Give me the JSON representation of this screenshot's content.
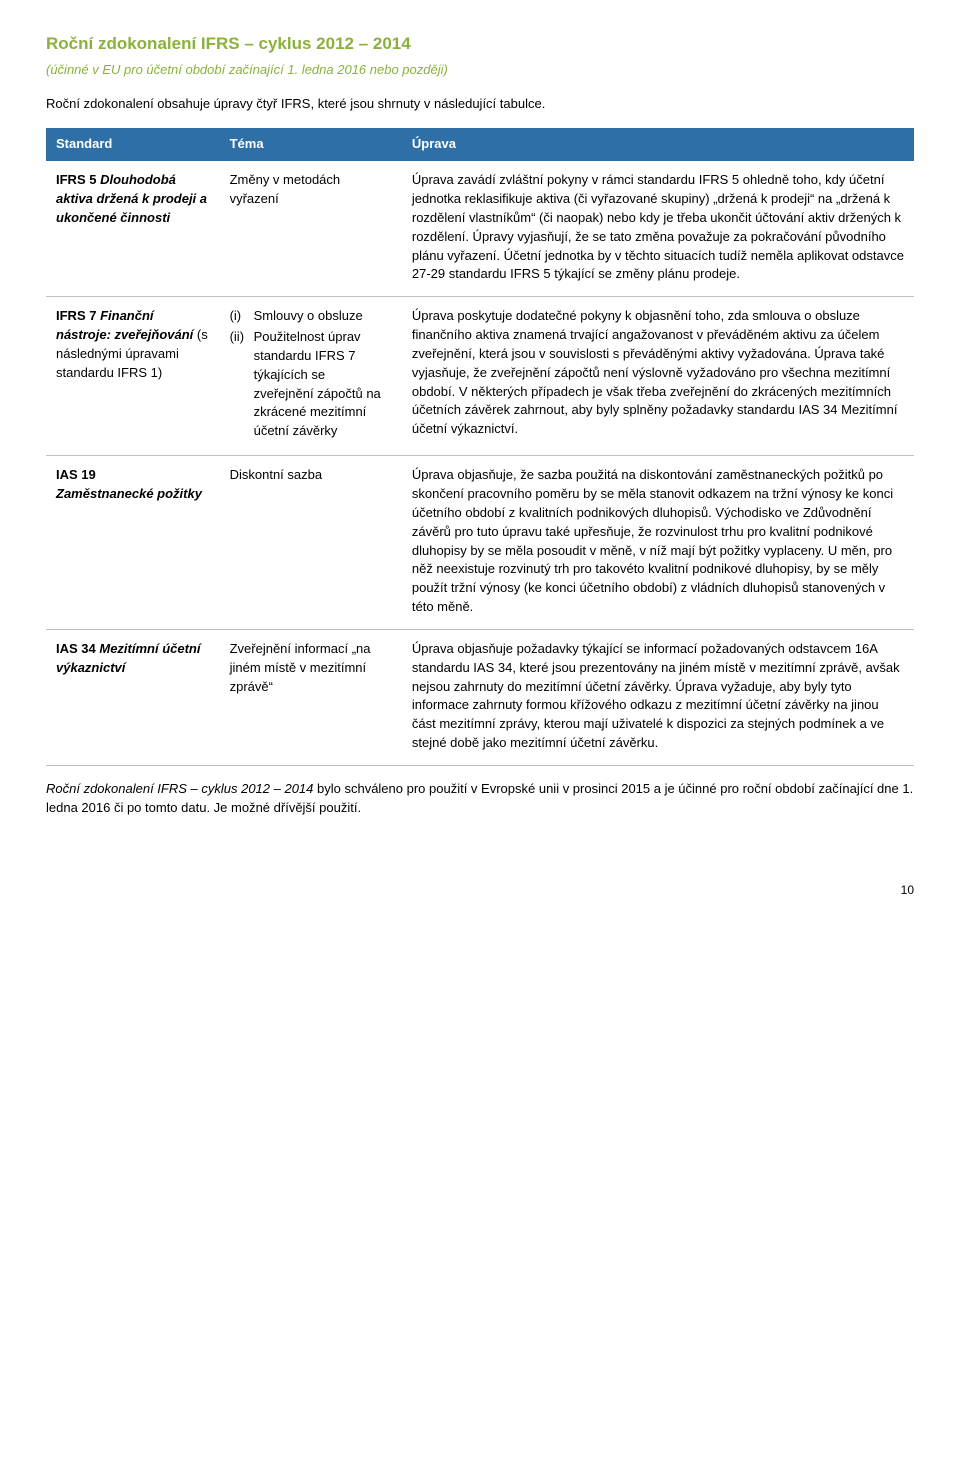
{
  "colors": {
    "accent_green": "#8bb13c",
    "header_blue": "#2e6fa6",
    "header_text": "#ffffff",
    "row_border": "#bfbfbf",
    "body_text": "#000000",
    "background": "#ffffff"
  },
  "typography": {
    "body_family": "Arial, Helvetica, sans-serif",
    "body_size_pt": 10,
    "title_size_pt": 13,
    "line_height": 1.45
  },
  "title": "Roční zdokonalení IFRS – cyklus 2012 – 2014",
  "subtitle": "(účinné v EU pro účetní období začínající 1. ledna 2016 nebo později)",
  "intro": "Roční zdokonalení obsahuje úpravy čtyř IFRS, které jsou shrnuty v následující tabulce.",
  "table": {
    "headers": [
      "Standard",
      "Téma",
      "Úprava"
    ],
    "rows": [
      {
        "standard_bold": "IFRS 5 ",
        "standard_ital": "Dlouhodobá aktiva držená k prodeji a ukončené činnosti",
        "topic_plain": "Změny v metodách vyřazení",
        "desc": "Úprava zavádí zvláštní pokyny v rámci standardu IFRS 5 ohledně toho, kdy účetní jednotka reklasifikuje aktiva (či vyřazované skupiny) „držená k prodeji“ na „držená k rozdělení vlastníkům“ (či naopak) nebo kdy je třeba ukončit účtování aktiv držených k rozdělení. Úpravy vyjasňují, že se tato změna považuje za pokračování původního plánu vyřazení. Účetní jednotka by v těchto situacích tudíž neměla aplikovat odstavce 27-29 standardu IFRS 5 týkající se změny plánu prodeje."
      },
      {
        "standard_bold": "IFRS 7 ",
        "standard_ital": "Finanční nástroje: zveřejňování",
        "standard_tail": " (s následnými úpravami standardu IFRS 1)",
        "topic_items": [
          {
            "n": "(i)",
            "t": "Smlouvy o obsluze"
          },
          {
            "n": "(ii)",
            "t": "Použitelnost úprav standardu IFRS 7 týkajících se zveřejnění zápočtů na zkrácené mezitímní účetní závěrky"
          }
        ],
        "desc": "Úprava poskytuje dodatečné pokyny k objasnění toho, zda smlouva o obsluze finančního aktiva znamená trvající angažovanost v převáděném aktivu za účelem zveřejnění, která jsou v souvislosti s převáděnými aktivy vyžadována. Úprava také vyjasňuje, že zveřejnění zápočtů není výslovně vyžadováno pro všechna mezitímní období. V některých případech je však třeba zveřejnění do zkrácených mezitímních účetních závěrek zahrnout, aby byly splněny požadavky standardu IAS 34 Mezitímní účetní výkaznictví."
      },
      {
        "standard_bold": "IAS 19",
        "standard_ital_block": "Zaměstnanecké požitky",
        "topic_plain": "Diskontní sazba",
        "desc": "Úprava objasňuje, že sazba použitá na diskontování zaměstnaneckých požitků po skončení pracovního poměru by se měla stanovit odkazem na tržní výnosy ke konci účetního období z kvalitních podnikových dluhopisů. Východisko ve Zdůvodnění závěrů pro tuto úpravu také upřesňuje, že rozvinulost trhu pro kvalitní podnikové dluhopisy by se měla posoudit v měně, v níž mají být požitky vyplaceny. U měn, pro něž neexistuje rozvinutý trh pro takovéto kvalitní podnikové dluhopisy, by se měly použít tržní výnosy (ke konci účetního období) z vládních dluhopisů stanovených v této měně."
      },
      {
        "standard_bold": "IAS 34 ",
        "standard_ital": "Mezitímní účetní výkaznictví",
        "topic_plain": "Zveřejnění informací „na jiném místě v mezitímní zprávě“",
        "desc": "Úprava objasňuje požadavky týkající se informací požadovaných odstavcem 16A standardu IAS 34, které jsou prezentovány na jiném místě v mezitímní zprávě, avšak nejsou zahrnuty do mezitímní účetní závěrky. Úprava vyžaduje, aby byly tyto informace zahrnuty formou křížového odkazu z mezitímní účetní závěrky na jinou část mezitímní zprávy, kterou mají uživatelé k dispozici za stejných podmínek a ve stejné době jako mezitímní účetní závěrku."
      }
    ]
  },
  "closing_ital": "Roční zdokonalení IFRS – cyklus 2012 – 2014",
  "closing_rest": " bylo schváleno pro použití v Evropské unii v prosinci 2015 a je účinné pro roční období začínající dne 1. ledna 2016 či po tomto datu. Je možné dřívější použití.",
  "page_number": "10"
}
